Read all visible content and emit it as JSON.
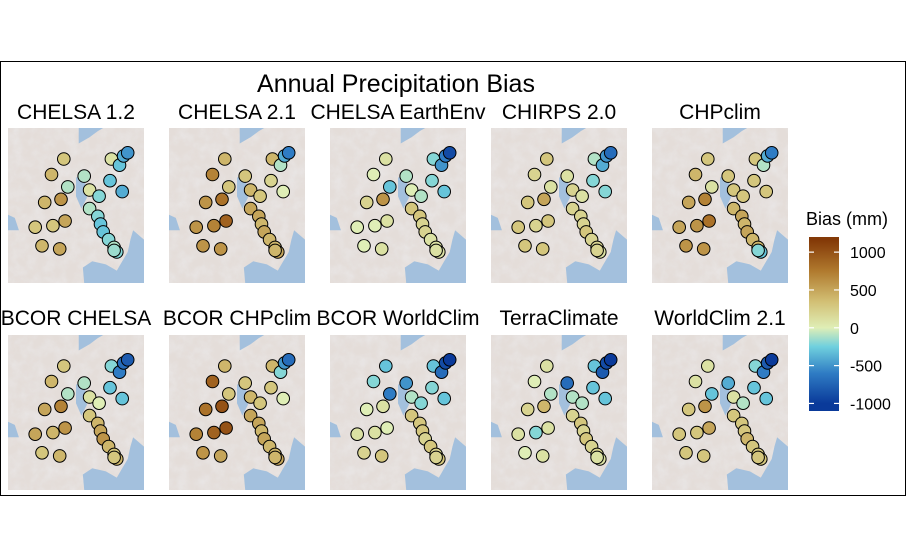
{
  "chart_data": {
    "type": "map-scatter",
    "title": "Annual Precipitation Bias",
    "legend": {
      "title": "Bias (mm)",
      "ticks": [
        1000,
        500,
        0,
        -500,
        -1000
      ],
      "range": [
        -1100,
        1200
      ],
      "colors": [
        "#0a3a9a",
        "#2f7cc4",
        "#6fd0de",
        "#dfeeb6",
        "#d2bf74",
        "#b07a2e",
        "#843a08"
      ]
    },
    "stations": [
      [
        0.41,
        0.2
      ],
      [
        0.44,
        0.38
      ],
      [
        0.32,
        0.3
      ],
      [
        0.39,
        0.46
      ],
      [
        0.27,
        0.48
      ],
      [
        0.42,
        0.6
      ],
      [
        0.33,
        0.63
      ],
      [
        0.2,
        0.64
      ],
      [
        0.25,
        0.76
      ],
      [
        0.38,
        0.78
      ],
      [
        0.6,
        0.52
      ],
      [
        0.66,
        0.57
      ],
      [
        0.68,
        0.62
      ],
      [
        0.7,
        0.67
      ],
      [
        0.74,
        0.72
      ],
      [
        0.78,
        0.77
      ],
      [
        0.8,
        0.8
      ],
      [
        0.78,
        0.79
      ],
      [
        0.6,
        0.4
      ],
      [
        0.67,
        0.44
      ],
      [
        0.76,
        0.2
      ],
      [
        0.82,
        0.24
      ],
      [
        0.75,
        0.34
      ],
      [
        0.85,
        0.18
      ],
      [
        0.88,
        0.16
      ],
      [
        0.84,
        0.41
      ],
      [
        0.56,
        0.31
      ]
    ],
    "panels": [
      {
        "label": "CHELSA 1.2",
        "values": [
          300,
          -100,
          400,
          600,
          400,
          500,
          300,
          300,
          400,
          500,
          -100,
          -200,
          -300,
          -300,
          -200,
          -100,
          -200,
          -150,
          100,
          -200,
          100,
          -300,
          -300,
          -400,
          -500,
          -400,
          -100
        ]
      },
      {
        "label": "CHELSA 2.1",
        "values": [
          400,
          300,
          700,
          800,
          600,
          900,
          700,
          600,
          600,
          600,
          500,
          500,
          400,
          500,
          400,
          400,
          500,
          400,
          400,
          300,
          400,
          -100,
          200,
          -400,
          -600,
          0,
          300
        ]
      },
      {
        "label": "CHELSA EarthEnv",
        "values": [
          100,
          -300,
          0,
          600,
          200,
          100,
          0,
          0,
          0,
          100,
          300,
          300,
          200,
          200,
          100,
          100,
          100,
          100,
          0,
          -100,
          -200,
          -500,
          -200,
          -600,
          -900,
          -300,
          -100
        ]
      },
      {
        "label": "CHIRPS 2.0",
        "values": [
          300,
          100,
          200,
          500,
          300,
          300,
          200,
          300,
          300,
          300,
          200,
          200,
          200,
          300,
          200,
          200,
          100,
          200,
          200,
          100,
          -100,
          -400,
          -200,
          -500,
          -700,
          -200,
          100
        ]
      },
      {
        "label": "CHPclim",
        "values": [
          300,
          100,
          400,
          700,
          500,
          800,
          600,
          500,
          600,
          600,
          400,
          500,
          400,
          500,
          400,
          400,
          -300,
          -200,
          300,
          300,
          300,
          -100,
          300,
          -400,
          -600,
          300,
          300
        ]
      },
      {
        "label": "BCOR CHELSA",
        "values": [
          300,
          -100,
          400,
          700,
          500,
          600,
          400,
          500,
          300,
          400,
          300,
          400,
          500,
          600,
          400,
          300,
          400,
          300,
          100,
          0,
          -200,
          -600,
          -300,
          -700,
          -800,
          -300,
          -100
        ]
      },
      {
        "label": "BCOR CHPclim",
        "values": [
          400,
          300,
          900,
          1000,
          800,
          1000,
          900,
          700,
          600,
          500,
          500,
          500,
          400,
          500,
          400,
          400,
          500,
          400,
          400,
          300,
          400,
          -200,
          300,
          -500,
          -700,
          0,
          300
        ]
      },
      {
        "label": "BCOR WorldClim",
        "values": [
          -300,
          -600,
          -200,
          100,
          0,
          0,
          100,
          100,
          200,
          300,
          300,
          300,
          300,
          200,
          300,
          200,
          300,
          200,
          -100,
          -200,
          -300,
          -700,
          -200,
          -900,
          -1000,
          -300,
          -500
        ]
      },
      {
        "label": "TerraClimate",
        "values": [
          100,
          -100,
          0,
          400,
          200,
          100,
          -200,
          100,
          0,
          100,
          200,
          300,
          200,
          300,
          200,
          200,
          100,
          100,
          -100,
          -100,
          -300,
          -800,
          -300,
          -900,
          -1000,
          -300,
          -700
        ]
      },
      {
        "label": "WorldClim 2.1",
        "values": [
          100,
          -300,
          100,
          600,
          300,
          500,
          300,
          300,
          300,
          300,
          300,
          300,
          300,
          400,
          300,
          300,
          300,
          300,
          100,
          -100,
          -200,
          -600,
          -300,
          -800,
          -1000,
          -300,
          -400
        ]
      }
    ]
  }
}
